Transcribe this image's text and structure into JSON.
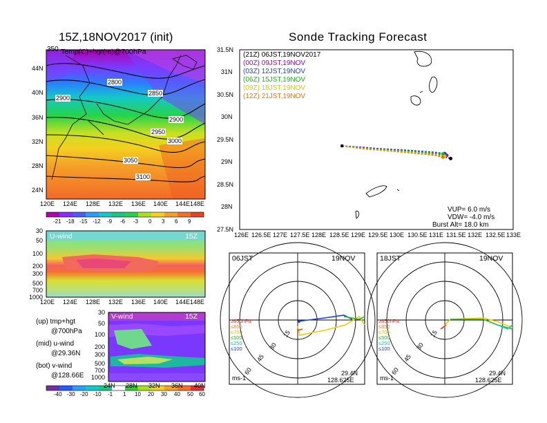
{
  "left_title": "15Z,18NOV2017 (init)",
  "right_title": "Sonde Tracking Forecast",
  "map_panel": {
    "overlay_label": "Temp(C)+hgt(m)@700hPa",
    "corner_label": "350",
    "lat_ticks": [
      "44N",
      "40N",
      "36N",
      "32N",
      "28N",
      "24N"
    ],
    "lon_ticks": [
      "120E",
      "124E",
      "128E",
      "132E",
      "136E",
      "140E",
      "144E",
      "148E"
    ],
    "contour_labels": [
      "2800",
      "2850",
      "2900",
      "2900",
      "2950",
      "3000",
      "3050",
      "3100"
    ]
  },
  "temp_colorbar": {
    "ticks": [
      "-21",
      "-18",
      "-15",
      "-12",
      "-9",
      "-6",
      "-3",
      "0",
      "3",
      "6",
      "9"
    ]
  },
  "u_panel": {
    "label": "U-wind",
    "time": "15Z",
    "y_ticks": [
      "30",
      "50",
      "100",
      "200",
      "300",
      "500",
      "700",
      "1000"
    ],
    "x_ticks": [
      "120E",
      "124E",
      "128E",
      "132E",
      "136E",
      "140E",
      "144E",
      "148E"
    ]
  },
  "v_panel": {
    "label": "V-wind",
    "time": "15Z",
    "y_ticks": [
      "30",
      "50",
      "100",
      "200",
      "300",
      "500",
      "700",
      "1000"
    ],
    "x_ticks": [
      "24N",
      "28N",
      "32N",
      "36N",
      "40N"
    ]
  },
  "legend_text": {
    "up": "(up) tmp+hgt",
    "up2": "@700hPa",
    "mid": "(mid) u-wind",
    "mid2": "@29.36N",
    "bot": "(bot) v-wind",
    "bot2": "@128.66E"
  },
  "wind_colorbar": {
    "ticks": [
      "-40",
      "-30",
      "-20",
      "-10",
      "-1",
      "1",
      "10",
      "20",
      "30",
      "40",
      "50",
      "60"
    ]
  },
  "colors": {
    "track_21Z": "#000000",
    "track_00Z": "#9900cc",
    "track_03Z": "#1f3fdc",
    "track_06Z": "#11bb11",
    "track_09Z": "#cccc00",
    "track_12Z": "#ee7700"
  },
  "chart_data": {
    "type": "line",
    "title": "Sonde Tracking Forecast",
    "xlabel": "",
    "ylabel": "",
    "x_ticks": [
      "126E",
      "126.5E",
      "127E",
      "127.5E",
      "128E",
      "128.5E",
      "129E",
      "129.5E",
      "130E",
      "130.5E",
      "131E",
      "131.5E",
      "132E",
      "132.5E",
      "133E"
    ],
    "y_ticks": [
      "27.5N",
      "28N",
      "28.5N",
      "29N",
      "29.5N",
      "30N",
      "30.5N",
      "31N",
      "31.5N"
    ],
    "xlim": [
      126,
      133
    ],
    "ylim": [
      27.5,
      31.5
    ],
    "legend": [
      {
        "code": "(21Z)",
        "text": "06JST,19NOV2017"
      },
      {
        "code": "(00Z)",
        "text": "09JST,19NOV"
      },
      {
        "code": "(03Z)",
        "text": "12JST,19NOV"
      },
      {
        "code": "(06Z)",
        "text": "15JST,19NOV"
      },
      {
        "code": "(09Z)",
        "text": "18JST,19NOV"
      },
      {
        "code": "(12Z)",
        "text": "21JST,19NOV"
      }
    ],
    "series": [
      {
        "x": [
          128.62,
          129.2,
          129.8,
          130.4,
          131.0,
          131.4
        ],
        "y": [
          29.36,
          29.31,
          29.27,
          29.22,
          29.16,
          29.08
        ]
      },
      {
        "x": [
          128.62,
          129.2,
          129.8,
          130.4,
          131.0,
          131.3
        ],
        "y": [
          29.36,
          29.33,
          29.28,
          29.24,
          29.19,
          29.15
        ]
      },
      {
        "x": [
          128.62,
          129.2,
          129.8,
          130.4,
          131.0,
          131.25
        ],
        "y": [
          29.36,
          29.32,
          29.29,
          29.26,
          29.22,
          29.19
        ]
      },
      {
        "x": [
          128.62,
          129.2,
          129.8,
          130.4,
          131.0,
          131.2
        ],
        "y": [
          29.36,
          29.31,
          29.27,
          29.24,
          29.2,
          29.18
        ]
      },
      {
        "x": [
          128.62,
          129.2,
          129.8,
          130.4,
          131.0,
          131.25
        ],
        "y": [
          29.36,
          29.3,
          29.26,
          29.22,
          29.17,
          29.13
        ]
      },
      {
        "x": [
          128.62,
          129.2,
          129.8,
          130.4,
          131.0,
          131.2
        ],
        "y": [
          29.36,
          29.29,
          29.25,
          29.2,
          29.15,
          29.11
        ]
      }
    ],
    "info": {
      "vup": "VUP=  6.0  m/s",
      "vdw": "VDW= -4.0  m/s",
      "burst": "Burst Alt=  18.0  km"
    }
  },
  "hodographs": [
    {
      "time": "06JST",
      "date": "19NOV",
      "lat": "29.4N",
      "lon": "128.625E",
      "unit": "ms-1",
      "ring_labels": [
        "15",
        "30",
        "45",
        "60"
      ],
      "levels": [
        "≥850hPa",
        "≤850",
        "≤700",
        "≤500",
        "≤250",
        "≤100"
      ]
    },
    {
      "time": "18JST",
      "date": "19NOV",
      "lat": "29.4N",
      "lon": "128.625E",
      "unit": "ms-1",
      "ring_labels": [
        "15",
        "30",
        "45",
        "60"
      ],
      "levels": [
        "≥850hPa",
        "≤850",
        "≤700",
        "≤500",
        "≤250",
        "≤100"
      ]
    }
  ]
}
